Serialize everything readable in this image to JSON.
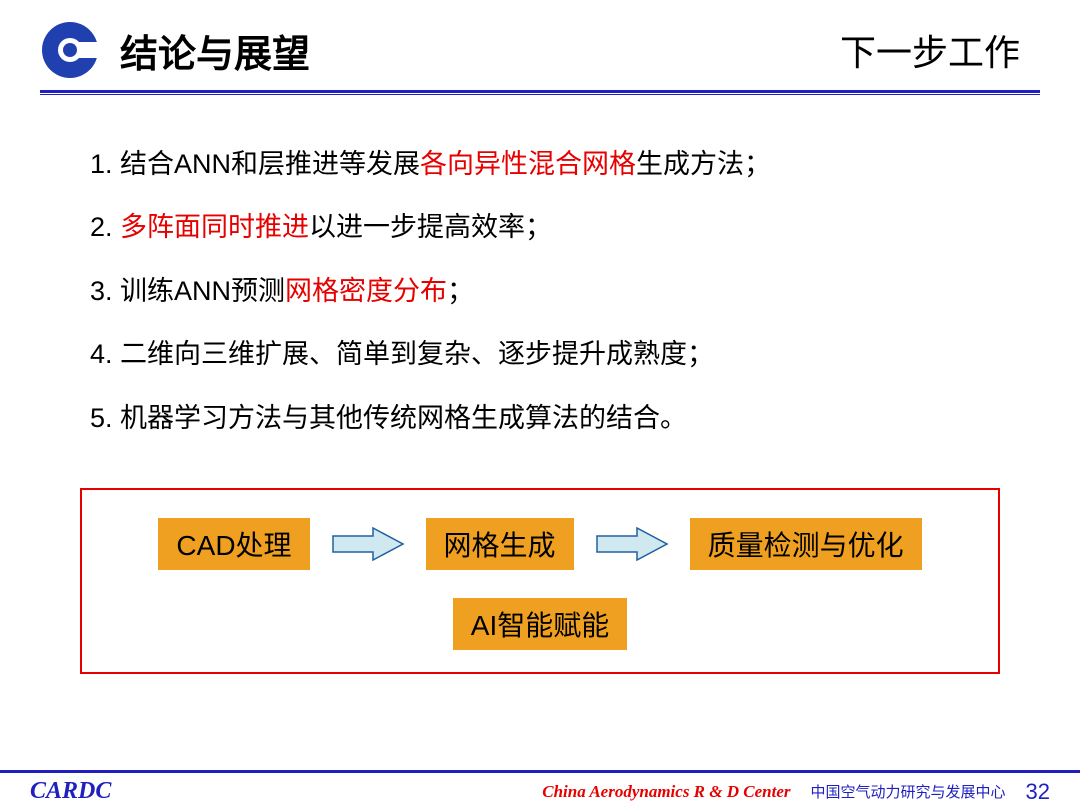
{
  "header": {
    "title": "结论与展望",
    "subtitle": "下一步工作"
  },
  "list": [
    {
      "num": "1. ",
      "parts": [
        {
          "t": "结合ANN和层推进等发展",
          "c": "black"
        },
        {
          "t": "各向异性混合网格",
          "c": "red"
        },
        {
          "t": "生成方法；",
          "c": "black"
        }
      ]
    },
    {
      "num": "2. ",
      "parts": [
        {
          "t": "多阵面同时推进",
          "c": "red"
        },
        {
          "t": "以进一步提高效率；",
          "c": "black"
        }
      ]
    },
    {
      "num": "3. ",
      "parts": [
        {
          "t": "训练ANN预测",
          "c": "black"
        },
        {
          "t": "网格密度分布",
          "c": "red"
        },
        {
          "t": "；",
          "c": "black"
        }
      ]
    },
    {
      "num": "4. ",
      "parts": [
        {
          "t": "二维向三维扩展、简单到复杂、逐步提升成熟度；",
          "c": "black"
        }
      ]
    },
    {
      "num": "5. ",
      "parts": [
        {
          "t": "机器学习方法与其他传统网格生成算法的结合。",
          "c": "black"
        }
      ]
    }
  ],
  "diagram": {
    "border_color": "#e60000",
    "node_bg": "#f0a020",
    "arrow_fill": "#d0e8f0",
    "arrow_stroke": "#2060a0",
    "nodes_row1": [
      "CAD处理",
      "网格生成",
      "质量检测与优化"
    ],
    "node_row2": "AI智能赋能"
  },
  "footer": {
    "left": "CARDC",
    "en": "China Aerodynamics R & D Center",
    "cn": "中国空气动力研究与发展中心",
    "page": "32"
  },
  "colors": {
    "blue": "#2020c0",
    "red_text": "#e60000",
    "logo_blue": "#2040b0"
  }
}
